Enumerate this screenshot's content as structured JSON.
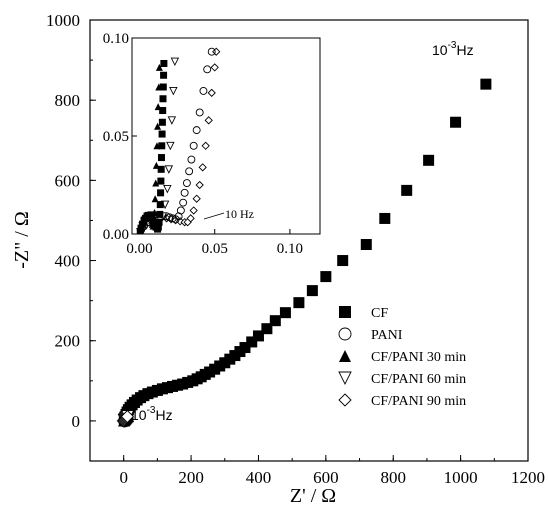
{
  "chart_data": [
    {
      "type": "scatter",
      "xlabel": "Z' / Ω",
      "ylabel": "-Z\" / Ω",
      "xlim": [
        -100,
        1200
      ],
      "ylim": [
        -100,
        1000
      ],
      "x_ticks": [
        "0",
        "200",
        "400",
        "600",
        "800",
        "1000",
        "1200"
      ],
      "y_ticks": [
        "0",
        "200",
        "400",
        "600",
        "800",
        "1000"
      ],
      "legend_position": "bottom-right",
      "annotations": {
        "high": "10",
        "high_exp": "-3",
        "high_unit": "Hz",
        "low": "10",
        "low_exp": "-3",
        "low_unit": "Hz"
      },
      "series": [
        {
          "name": "CF",
          "marker": "filled-square",
          "x": [
            2,
            4,
            7,
            10,
            14,
            19,
            25,
            32,
            40,
            50,
            60,
            72,
            85,
            100,
            115,
            130,
            145,
            160,
            175,
            190,
            205,
            218,
            230,
            242,
            255,
            270,
            285,
            300,
            315,
            330,
            345,
            360,
            380,
            400,
            425,
            450,
            480,
            520,
            560,
            600,
            650,
            720,
            775,
            840,
            905,
            985,
            1075
          ],
          "y": [
            5,
            10,
            16,
            22,
            28,
            34,
            40,
            46,
            52,
            58,
            63,
            68,
            72,
            76,
            80,
            83,
            86,
            89,
            92,
            96,
            100,
            105,
            110,
            116,
            122,
            129,
            137,
            145,
            154,
            163,
            173,
            183,
            197,
            212,
            230,
            250,
            270,
            295,
            325,
            360,
            400,
            440,
            505,
            575,
            650,
            745,
            840
          ]
        },
        {
          "name": "PANI",
          "marker": "open-circle",
          "x": [
            3,
            5,
            7,
            8,
            9,
            10,
            10
          ],
          "y": [
            0,
            2,
            4,
            5,
            6,
            7,
            8
          ]
        },
        {
          "name": "CF/PANI 30 min",
          "marker": "filled-triangle",
          "x": [
            1,
            3,
            5,
            7,
            9,
            11,
            12,
            13
          ],
          "y": [
            1,
            3,
            5,
            7,
            9,
            11,
            12,
            13
          ]
        },
        {
          "name": "CF/PANI 60 min",
          "marker": "open-triangle-down",
          "x": [
            2,
            4,
            6,
            8,
            10,
            12
          ],
          "y": [
            1,
            3,
            5,
            7,
            9,
            11
          ]
        },
        {
          "name": "CF/PANI 90 min",
          "marker": "open-diamond",
          "x": [
            -1,
            1,
            3,
            5,
            7,
            9,
            11
          ],
          "y": [
            0,
            1,
            3,
            5,
            7,
            9,
            11
          ]
        }
      ]
    },
    {
      "type": "scatter",
      "xlim": [
        -0.005,
        0.12
      ],
      "ylim": [
        0,
        0.1
      ],
      "x_ticks": [
        "0.00",
        "0.05",
        "0.10"
      ],
      "y_ticks": [
        "0.00",
        "0.05",
        "0.10"
      ],
      "annotation": "10 Hz",
      "series": [
        {
          "name": "CF",
          "marker": "filled-square",
          "x": [
            0.0005,
            0.001,
            0.002,
            0.003,
            0.004,
            0.005,
            0.006,
            0.007,
            0.008,
            0.009,
            0.01,
            0.011,
            0.012,
            0.0125,
            0.013,
            0.0135,
            0.0138,
            0.014,
            0.0142,
            0.0144,
            0.0146,
            0.0148,
            0.015,
            0.0152,
            0.0154,
            0.0156,
            0.0158,
            0.016,
            0.0162
          ],
          "y": [
            0.001,
            0.003,
            0.005,
            0.007,
            0.008,
            0.0092,
            0.0095,
            0.0093,
            0.0085,
            0.0072,
            0.0055,
            0.0035,
            0.0025,
            0.0035,
            0.006,
            0.01,
            0.015,
            0.021,
            0.027,
            0.033,
            0.039,
            0.045,
            0.051,
            0.057,
            0.063,
            0.069,
            0.075,
            0.081,
            0.087
          ]
        },
        {
          "name": "PANI",
          "marker": "open-circle",
          "x": [
            0.001,
            0.003,
            0.006,
            0.009,
            0.012,
            0.015,
            0.018,
            0.02,
            0.022,
            0.024,
            0.026,
            0.0275,
            0.029,
            0.03,
            0.0315,
            0.033,
            0.0345,
            0.036,
            0.038,
            0.04,
            0.0425,
            0.045,
            0.048
          ],
          "y": [
            0.002,
            0.004,
            0.006,
            0.0075,
            0.0085,
            0.009,
            0.009,
            0.0085,
            0.008,
            0.0075,
            0.009,
            0.012,
            0.016,
            0.021,
            0.026,
            0.032,
            0.038,
            0.045,
            0.053,
            0.062,
            0.073,
            0.084,
            0.093
          ]
        },
        {
          "name": "CF/PANI 30 min",
          "marker": "filled-triangle",
          "x": [
            0.0005,
            0.001,
            0.002,
            0.003,
            0.004,
            0.005,
            0.006,
            0.007,
            0.008,
            0.0085,
            0.009,
            0.0095,
            0.01,
            0.0104,
            0.0108,
            0.0112,
            0.0116,
            0.012,
            0.0124,
            0.0128,
            0.0132
          ],
          "y": [
            0.001,
            0.003,
            0.005,
            0.007,
            0.008,
            0.0088,
            0.009,
            0.0085,
            0.007,
            0.005,
            0.004,
            0.006,
            0.011,
            0.018,
            0.026,
            0.035,
            0.045,
            0.055,
            0.065,
            0.075,
            0.085
          ]
        },
        {
          "name": "CF/PANI 60 min",
          "marker": "open-triangle-down",
          "x": [
            0.0005,
            0.002,
            0.004,
            0.006,
            0.008,
            0.01,
            0.012,
            0.014,
            0.0155,
            0.017,
            0.0185,
            0.0195,
            0.0205,
            0.0215,
            0.0225,
            0.0235
          ],
          "y": [
            0.001,
            0.004,
            0.007,
            0.009,
            0.0095,
            0.009,
            0.008,
            0.007,
            0.009,
            0.015,
            0.023,
            0.033,
            0.045,
            0.058,
            0.073,
            0.088
          ]
        },
        {
          "name": "CF/PANI 90 min",
          "marker": "open-diamond",
          "x": [
            0.001,
            0.003,
            0.006,
            0.009,
            0.012,
            0.015,
            0.018,
            0.021,
            0.024,
            0.027,
            0.03,
            0.032,
            0.034,
            0.036,
            0.038,
            0.04,
            0.042,
            0.044,
            0.046,
            0.048,
            0.05,
            0.051
          ],
          "y": [
            0.002,
            0.004,
            0.006,
            0.008,
            0.0085,
            0.0085,
            0.008,
            0.0075,
            0.007,
            0.0065,
            0.006,
            0.006,
            0.008,
            0.012,
            0.018,
            0.025,
            0.034,
            0.045,
            0.058,
            0.072,
            0.085,
            0.093
          ]
        }
      ]
    }
  ]
}
